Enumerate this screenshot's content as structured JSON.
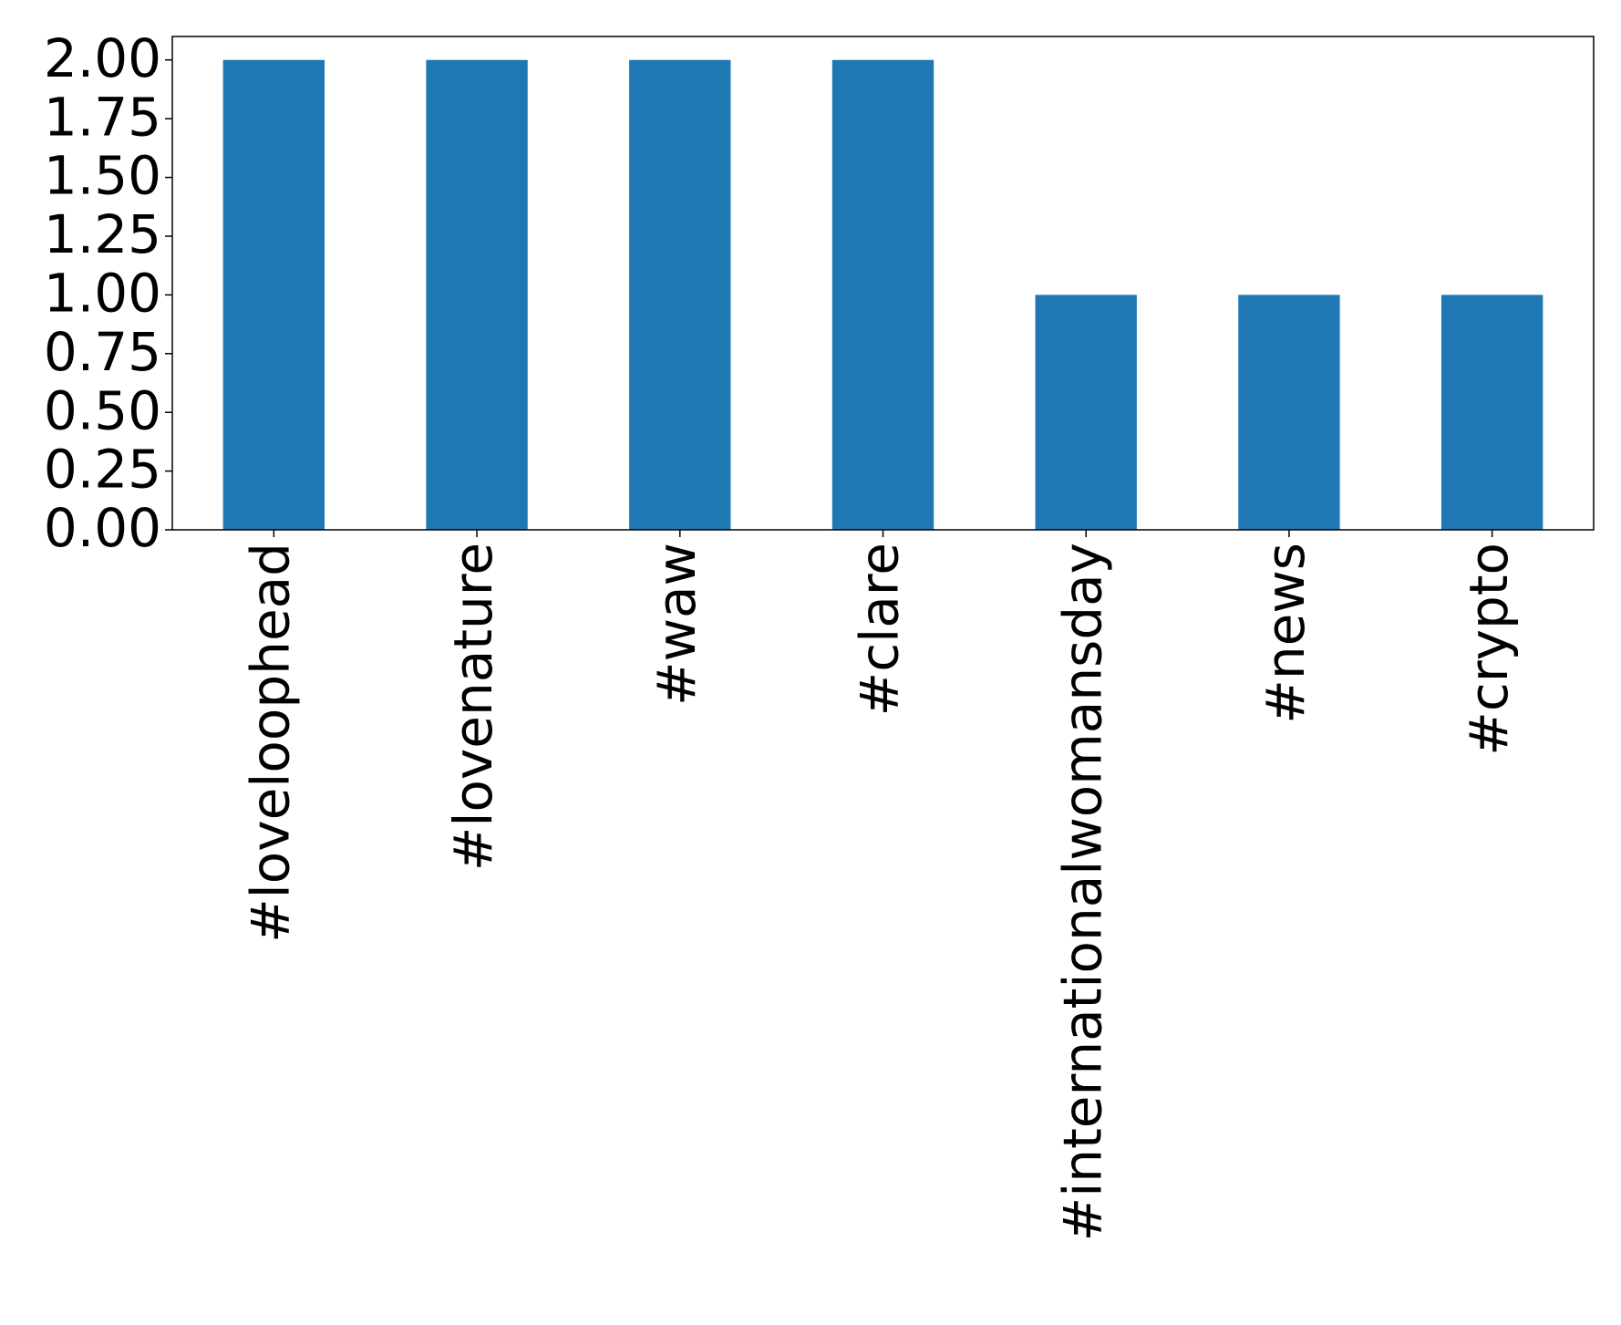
{
  "chart_data": {
    "type": "bar",
    "categories": [
      "#loveloophead",
      "#lovenature",
      "#waw",
      "#clare",
      "#internationalwomansday",
      "#news",
      "#crypto"
    ],
    "values": [
      2,
      2,
      2,
      2,
      1,
      1,
      1
    ],
    "color": "#1f77b4",
    "ylim": [
      0,
      2.1
    ],
    "yticks": [
      {
        "value": 0,
        "label": "0.00"
      },
      {
        "value": 0.25,
        "label": "0.25"
      },
      {
        "value": 0.5,
        "label": "0.50"
      },
      {
        "value": 0.75,
        "label": "0.75"
      },
      {
        "value": 1,
        "label": "1.00"
      },
      {
        "value": 1.25,
        "label": "1.25"
      },
      {
        "value": 1.5,
        "label": "1.50"
      },
      {
        "value": 1.75,
        "label": "1.75"
      },
      {
        "value": 2,
        "label": "2.00"
      }
    ],
    "grid": false
  }
}
